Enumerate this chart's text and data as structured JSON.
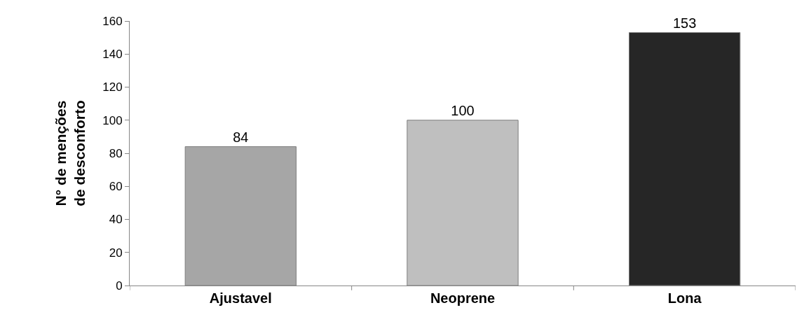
{
  "chart_data": {
    "type": "bar",
    "ylabel": "N° de menções de desconforto",
    "categories": [
      "Ajustavel",
      "Neoprene",
      "Lona"
    ],
    "values": [
      84,
      100,
      153
    ],
    "colors": [
      "#a6a6a6",
      "#bfbfbf",
      "#262626"
    ],
    "ylim": [
      0,
      160
    ],
    "yticks": [
      0,
      20,
      40,
      60,
      80,
      100,
      120,
      140,
      160
    ],
    "grid": false,
    "data_labels": true
  }
}
